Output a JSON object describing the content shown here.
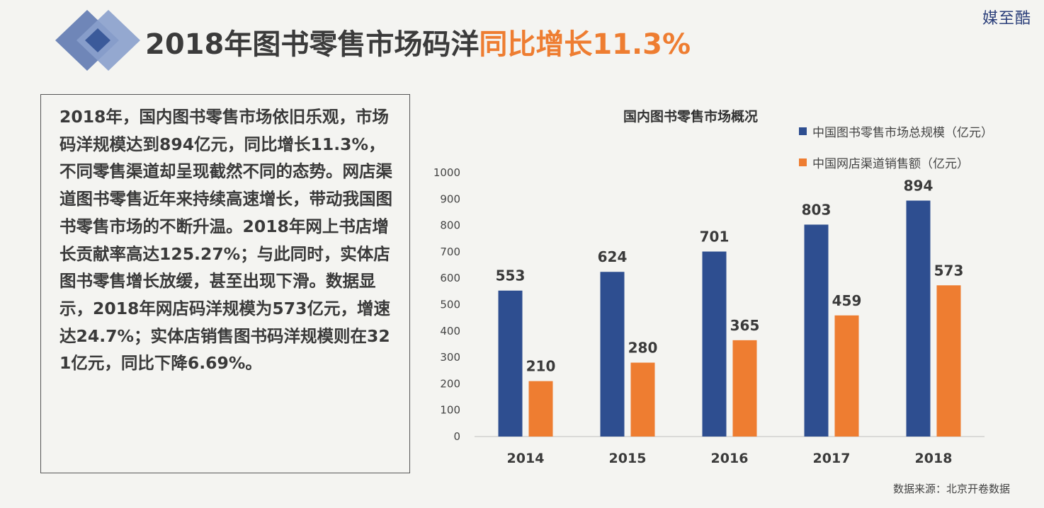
{
  "brand": "媒至酷",
  "title": {
    "main": "2018年图书零售市场码洋",
    "highlight": "同比增长11.3%"
  },
  "description": "2018年，国内图书零售市场依旧乐观，市场码洋规模达到894亿元，同比增长11.3%，不同零售渠道却呈现截然不同的态势。网店渠道图书零售近年来持续高速增长，带动我国图书零售市场的不断升温。2018年网上书店增长贡献率高达125.27%；与此同时，实体店图书零售增长放缓，甚至出现下滑。数据显示，2018年网店码洋规模为573亿元，增速达24.7%；实体店销售图书码洋规模则在321亿元，同比下降6.69%。",
  "source": "数据来源：北京开卷数据",
  "colors": {
    "blue": "#2e4e90",
    "orange": "#ee7d31",
    "accent": "#ee7d31"
  },
  "chart_data": {
    "type": "bar",
    "title": "国内图书零售市场概况",
    "categories": [
      "2014",
      "2015",
      "2016",
      "2017",
      "2018"
    ],
    "series": [
      {
        "name": "中国图书零售市场总规模（亿元）",
        "values": [
          553,
          624,
          701,
          803,
          894
        ],
        "color": "#2e4e90"
      },
      {
        "name": "中国网店渠道销售额（亿元）",
        "values": [
          210,
          280,
          365,
          459,
          573
        ],
        "color": "#ee7d31"
      }
    ],
    "ylim": [
      0,
      1000
    ],
    "yticks": [
      0,
      100,
      200,
      300,
      400,
      500,
      600,
      700,
      800,
      900,
      1000
    ],
    "grid": false,
    "legend_position": "top-right",
    "data_labels": true
  }
}
